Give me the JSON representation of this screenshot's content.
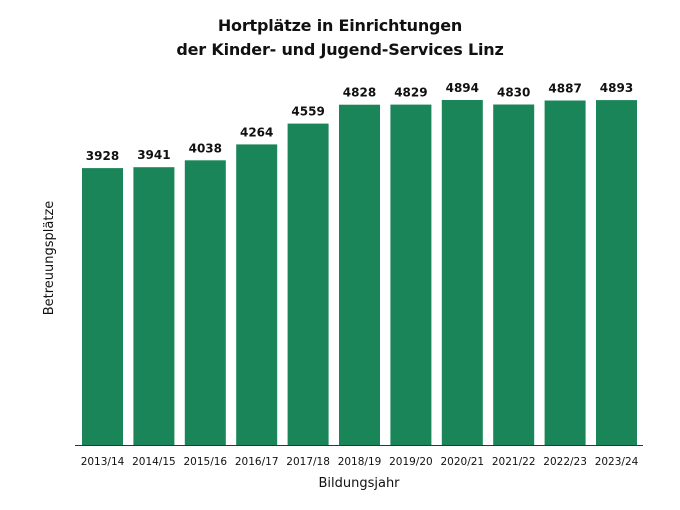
{
  "chart_data": {
    "type": "bar",
    "title_lines": [
      "Hortplätze in Einrichtungen",
      "der Kinder- und Jugend-Services Linz"
    ],
    "xlabel": "Bildungsjahr",
    "ylabel": "Betreuungsplätze",
    "categories": [
      "2013/14",
      "2014/15",
      "2015/16",
      "2016/17",
      "2017/18",
      "2018/19",
      "2019/20",
      "2020/21",
      "2021/22",
      "2022/23",
      "2023/24"
    ],
    "values": [
      3928,
      3941,
      4038,
      4264,
      4559,
      4828,
      4829,
      4894,
      4830,
      4887,
      4893
    ],
    "data_labels": [
      "3928",
      "3941",
      "4038",
      "4264",
      "4559",
      "4828",
      "4829",
      "4894",
      "4830",
      "4887",
      "4893"
    ],
    "bar_color": "#1a8558",
    "grid": false,
    "legend": "none",
    "show_y_ticks": false
  }
}
